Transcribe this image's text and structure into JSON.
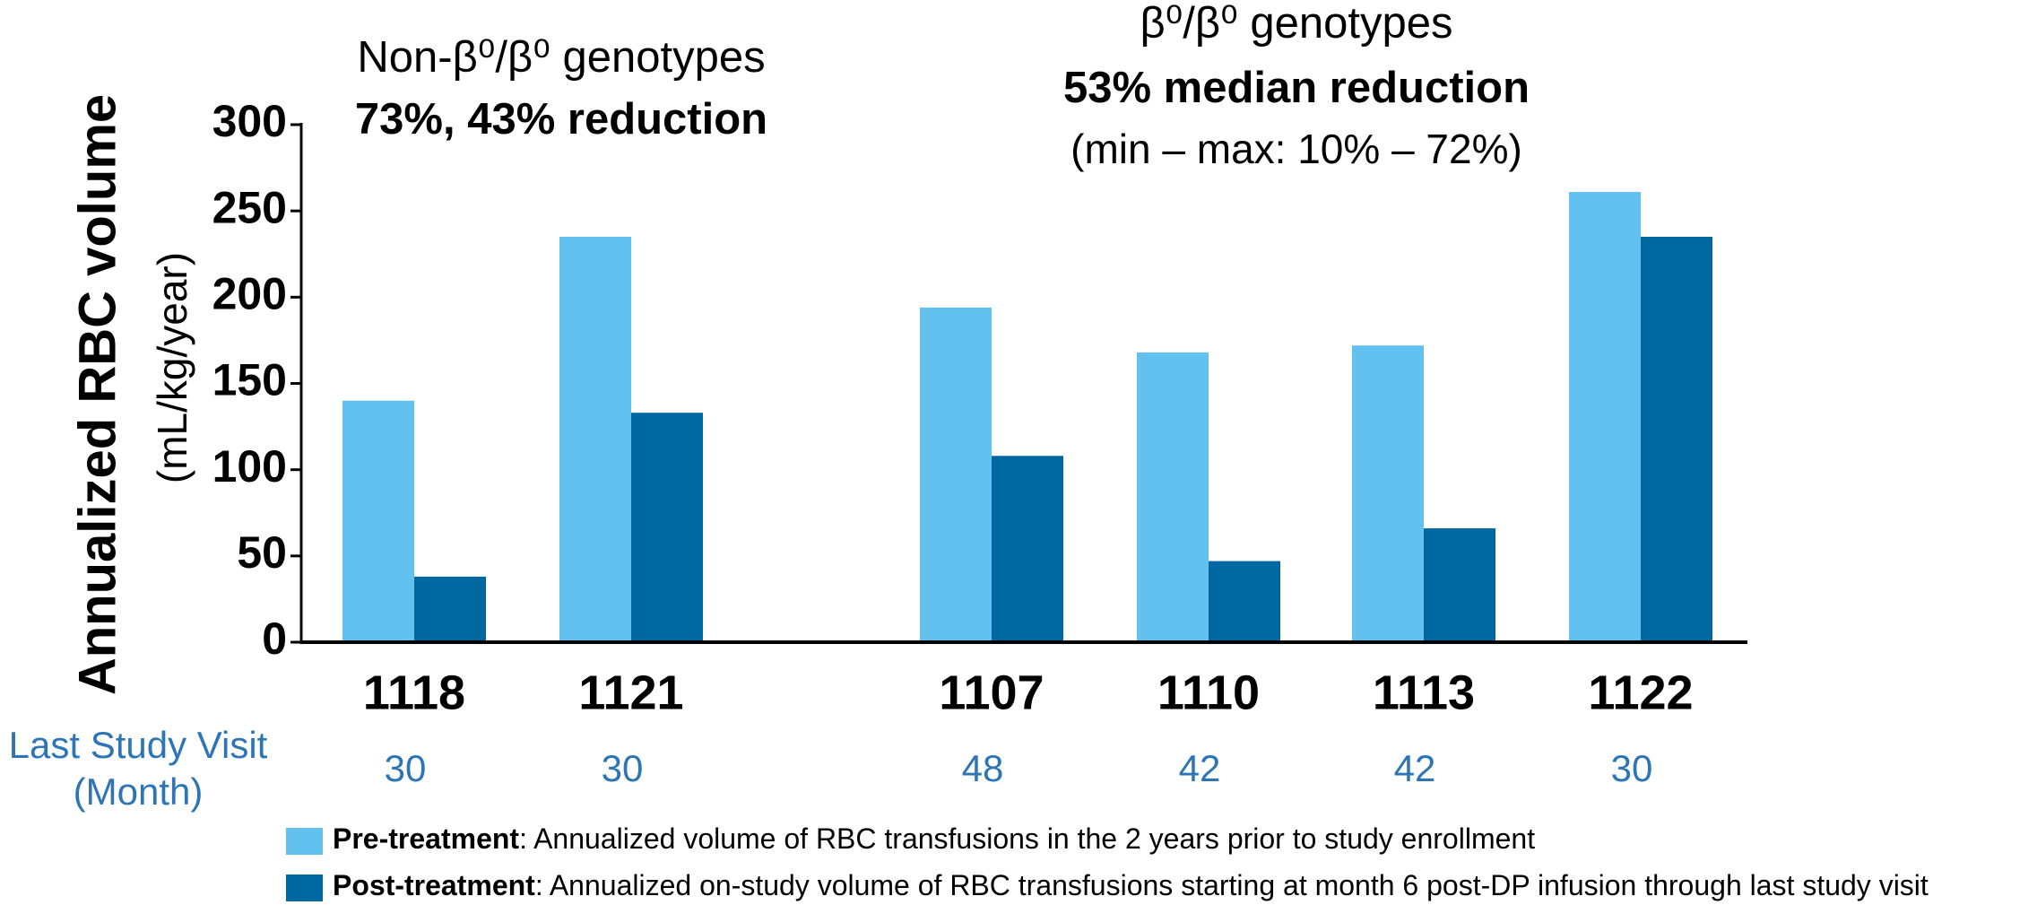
{
  "chart_data": {
    "type": "bar",
    "y_label": "Annualized RBC volume",
    "y_unit": "(mL/kg/year)",
    "categories": [
      "1118",
      "1121",
      "1107",
      "1110",
      "1113",
      "1122"
    ],
    "series": [
      {
        "name": "Pre-treatment",
        "color": "#63c1f0",
        "values": [
          140,
          235,
          194,
          168,
          172,
          261
        ],
        "description": ": Annualized volume of RBC transfusions in the 2 years prior to study enrollment"
      },
      {
        "name": "Post-treatment",
        "color": "#0068a0",
        "values": [
          38,
          133,
          108,
          47,
          66,
          235
        ],
        "description": ": Annualized on-study volume of RBC transfusions starting at month 6 post-DP infusion through last study visit"
      }
    ],
    "ylim": [
      0,
      300
    ],
    "yticks": [
      0,
      50,
      100,
      150,
      200,
      250,
      300
    ],
    "visit_label": [
      "Last Study Visit",
      "(Month)"
    ],
    "visits": [
      30,
      30,
      48,
      42,
      42,
      30
    ],
    "annotations": {
      "left": [
        "Non-β⁰/β⁰ genotypes",
        "73%, 43% reduction"
      ],
      "right": [
        "β⁰/β⁰ genotypes",
        "53% median reduction",
        "(min – max: 10% – 72%)"
      ]
    }
  }
}
